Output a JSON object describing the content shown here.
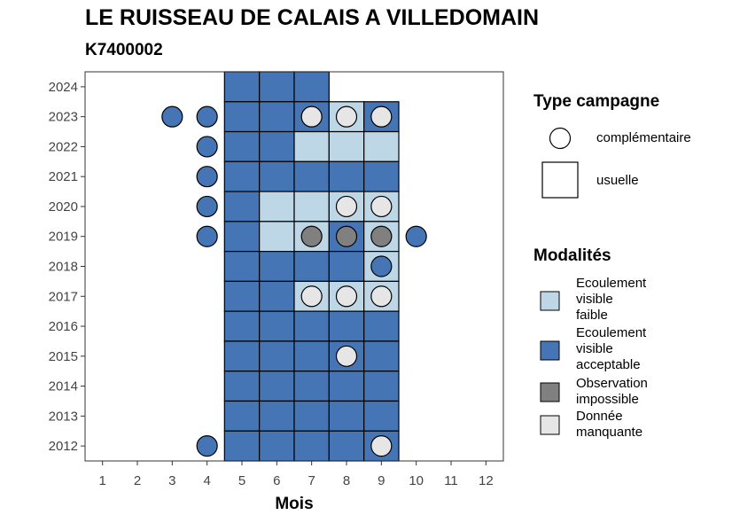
{
  "header": {
    "title": "LE RUISSEAU DE CALAIS A VILLEDOMAIN",
    "subtitle": "K7400002"
  },
  "colors": {
    "ecoulement_visible_faible": "#BDD7E7",
    "ecoulement_visible_acceptable": "#4575B4",
    "observation_impossible": "#808080",
    "donnee_manquante": "#E6E6E6"
  },
  "legend": {
    "campaign_title": "Type campagne",
    "campaign_items": [
      {
        "key": "complementaire",
        "label": "complémentaire",
        "shape": "circle"
      },
      {
        "key": "usuelle",
        "label": "usuelle",
        "shape": "square"
      }
    ],
    "modality_title": "Modalités",
    "modality_items": [
      {
        "key": "ecoulement_visible_faible",
        "lines": [
          "Ecoulement",
          "visible",
          "faible"
        ]
      },
      {
        "key": "ecoulement_visible_acceptable",
        "lines": [
          "Ecoulement",
          "visible",
          "acceptable"
        ]
      },
      {
        "key": "observation_impossible",
        "lines": [
          "Observation",
          "impossible"
        ]
      },
      {
        "key": "donnee_manquante",
        "lines": [
          "Donnée",
          "manquante"
        ]
      }
    ]
  },
  "chart_data": {
    "type": "heatmap",
    "title": "LE RUISSEAU DE CALAIS A VILLEDOMAIN",
    "subtitle": "K7400002",
    "xlabel": "Mois",
    "ylabel": "",
    "x_ticks": [
      1,
      2,
      3,
      4,
      5,
      6,
      7,
      8,
      9,
      10,
      11,
      12
    ],
    "y_ticks": [
      2012,
      2013,
      2014,
      2015,
      2016,
      2017,
      2018,
      2019,
      2020,
      2021,
      2022,
      2023,
      2024
    ],
    "xlim": [
      0.5,
      12.5
    ],
    "ylim": [
      2011.5,
      2024.5
    ],
    "grid": false,
    "legend_position": "right",
    "usuelle": [
      {
        "year": 2024,
        "month": 5,
        "modalite": "ecoulement_visible_acceptable"
      },
      {
        "year": 2024,
        "month": 6,
        "modalite": "ecoulement_visible_acceptable"
      },
      {
        "year": 2024,
        "month": 7,
        "modalite": "ecoulement_visible_acceptable"
      },
      {
        "year": 2023,
        "month": 5,
        "modalite": "ecoulement_visible_acceptable"
      },
      {
        "year": 2023,
        "month": 6,
        "modalite": "ecoulement_visible_acceptable"
      },
      {
        "year": 2023,
        "month": 7,
        "modalite": "ecoulement_visible_acceptable"
      },
      {
        "year": 2023,
        "month": 8,
        "modalite": "ecoulement_visible_faible"
      },
      {
        "year": 2023,
        "month": 9,
        "modalite": "ecoulement_visible_acceptable"
      },
      {
        "year": 2022,
        "month": 5,
        "modalite": "ecoulement_visible_acceptable"
      },
      {
        "year": 2022,
        "month": 6,
        "modalite": "ecoulement_visible_acceptable"
      },
      {
        "year": 2022,
        "month": 7,
        "modalite": "ecoulement_visible_faible"
      },
      {
        "year": 2022,
        "month": 8,
        "modalite": "ecoulement_visible_faible"
      },
      {
        "year": 2022,
        "month": 9,
        "modalite": "ecoulement_visible_faible"
      },
      {
        "year": 2021,
        "month": 5,
        "modalite": "ecoulement_visible_acceptable"
      },
      {
        "year": 2021,
        "month": 6,
        "modalite": "ecoulement_visible_acceptable"
      },
      {
        "year": 2021,
        "month": 7,
        "modalite": "ecoulement_visible_acceptable"
      },
      {
        "year": 2021,
        "month": 8,
        "modalite": "ecoulement_visible_acceptable"
      },
      {
        "year": 2021,
        "month": 9,
        "modalite": "ecoulement_visible_acceptable"
      },
      {
        "year": 2020,
        "month": 5,
        "modalite": "ecoulement_visible_acceptable"
      },
      {
        "year": 2020,
        "month": 6,
        "modalite": "ecoulement_visible_faible"
      },
      {
        "year": 2020,
        "month": 7,
        "modalite": "ecoulement_visible_faible"
      },
      {
        "year": 2020,
        "month": 8,
        "modalite": "ecoulement_visible_faible"
      },
      {
        "year": 2020,
        "month": 9,
        "modalite": "ecoulement_visible_faible"
      },
      {
        "year": 2019,
        "month": 5,
        "modalite": "ecoulement_visible_acceptable"
      },
      {
        "year": 2019,
        "month": 6,
        "modalite": "ecoulement_visible_faible"
      },
      {
        "year": 2019,
        "month": 7,
        "modalite": "ecoulement_visible_faible"
      },
      {
        "year": 2019,
        "month": 8,
        "modalite": "ecoulement_visible_acceptable"
      },
      {
        "year": 2019,
        "month": 9,
        "modalite": "ecoulement_visible_faible"
      },
      {
        "year": 2018,
        "month": 5,
        "modalite": "ecoulement_visible_acceptable"
      },
      {
        "year": 2018,
        "month": 6,
        "modalite": "ecoulement_visible_acceptable"
      },
      {
        "year": 2018,
        "month": 7,
        "modalite": "ecoulement_visible_acceptable"
      },
      {
        "year": 2018,
        "month": 8,
        "modalite": "ecoulement_visible_acceptable"
      },
      {
        "year": 2018,
        "month": 9,
        "modalite": "ecoulement_visible_faible"
      },
      {
        "year": 2017,
        "month": 5,
        "modalite": "ecoulement_visible_acceptable"
      },
      {
        "year": 2017,
        "month": 6,
        "modalite": "ecoulement_visible_acceptable"
      },
      {
        "year": 2017,
        "month": 7,
        "modalite": "ecoulement_visible_faible"
      },
      {
        "year": 2017,
        "month": 8,
        "modalite": "ecoulement_visible_faible"
      },
      {
        "year": 2017,
        "month": 9,
        "modalite": "ecoulement_visible_faible"
      },
      {
        "year": 2016,
        "month": 5,
        "modalite": "ecoulement_visible_acceptable"
      },
      {
        "year": 2016,
        "month": 6,
        "modalite": "ecoulement_visible_acceptable"
      },
      {
        "year": 2016,
        "month": 7,
        "modalite": "ecoulement_visible_acceptable"
      },
      {
        "year": 2016,
        "month": 8,
        "modalite": "ecoulement_visible_acceptable"
      },
      {
        "year": 2016,
        "month": 9,
        "modalite": "ecoulement_visible_acceptable"
      },
      {
        "year": 2015,
        "month": 5,
        "modalite": "ecoulement_visible_acceptable"
      },
      {
        "year": 2015,
        "month": 6,
        "modalite": "ecoulement_visible_acceptable"
      },
      {
        "year": 2015,
        "month": 7,
        "modalite": "ecoulement_visible_acceptable"
      },
      {
        "year": 2015,
        "month": 8,
        "modalite": "ecoulement_visible_acceptable"
      },
      {
        "year": 2015,
        "month": 9,
        "modalite": "ecoulement_visible_acceptable"
      },
      {
        "year": 2014,
        "month": 5,
        "modalite": "ecoulement_visible_acceptable"
      },
      {
        "year": 2014,
        "month": 6,
        "modalite": "ecoulement_visible_acceptable"
      },
      {
        "year": 2014,
        "month": 7,
        "modalite": "ecoulement_visible_acceptable"
      },
      {
        "year": 2014,
        "month": 8,
        "modalite": "ecoulement_visible_acceptable"
      },
      {
        "year": 2014,
        "month": 9,
        "modalite": "ecoulement_visible_acceptable"
      },
      {
        "year": 2013,
        "month": 5,
        "modalite": "ecoulement_visible_acceptable"
      },
      {
        "year": 2013,
        "month": 6,
        "modalite": "ecoulement_visible_acceptable"
      },
      {
        "year": 2013,
        "month": 7,
        "modalite": "ecoulement_visible_acceptable"
      },
      {
        "year": 2013,
        "month": 8,
        "modalite": "ecoulement_visible_acceptable"
      },
      {
        "year": 2013,
        "month": 9,
        "modalite": "ecoulement_visible_acceptable"
      },
      {
        "year": 2012,
        "month": 5,
        "modalite": "ecoulement_visible_acceptable"
      },
      {
        "year": 2012,
        "month": 6,
        "modalite": "ecoulement_visible_acceptable"
      },
      {
        "year": 2012,
        "month": 7,
        "modalite": "ecoulement_visible_acceptable"
      },
      {
        "year": 2012,
        "month": 8,
        "modalite": "ecoulement_visible_acceptable"
      },
      {
        "year": 2012,
        "month": 9,
        "modalite": "ecoulement_visible_acceptable"
      }
    ],
    "complementaire": [
      {
        "year": 2023,
        "month": 3,
        "modalite": "ecoulement_visible_acceptable"
      },
      {
        "year": 2023,
        "month": 4,
        "modalite": "ecoulement_visible_acceptable"
      },
      {
        "year": 2023,
        "month": 7,
        "modalite": "donnee_manquante"
      },
      {
        "year": 2023,
        "month": 8,
        "modalite": "donnee_manquante"
      },
      {
        "year": 2023,
        "month": 9,
        "modalite": "donnee_manquante"
      },
      {
        "year": 2022,
        "month": 4,
        "modalite": "ecoulement_visible_acceptable"
      },
      {
        "year": 2021,
        "month": 4,
        "modalite": "ecoulement_visible_acceptable"
      },
      {
        "year": 2020,
        "month": 4,
        "modalite": "ecoulement_visible_acceptable"
      },
      {
        "year": 2020,
        "month": 8,
        "modalite": "donnee_manquante"
      },
      {
        "year": 2020,
        "month": 9,
        "modalite": "donnee_manquante"
      },
      {
        "year": 2019,
        "month": 4,
        "modalite": "ecoulement_visible_acceptable"
      },
      {
        "year": 2019,
        "month": 7,
        "modalite": "observation_impossible"
      },
      {
        "year": 2019,
        "month": 8,
        "modalite": "observation_impossible"
      },
      {
        "year": 2019,
        "month": 9,
        "modalite": "observation_impossible"
      },
      {
        "year": 2019,
        "month": 10,
        "modalite": "ecoulement_visible_acceptable"
      },
      {
        "year": 2018,
        "month": 9,
        "modalite": "ecoulement_visible_acceptable"
      },
      {
        "year": 2017,
        "month": 7,
        "modalite": "donnee_manquante"
      },
      {
        "year": 2017,
        "month": 8,
        "modalite": "donnee_manquante"
      },
      {
        "year": 2017,
        "month": 9,
        "modalite": "donnee_manquante"
      },
      {
        "year": 2015,
        "month": 8,
        "modalite": "donnee_manquante"
      },
      {
        "year": 2012,
        "month": 4,
        "modalite": "ecoulement_visible_acceptable"
      },
      {
        "year": 2012,
        "month": 9,
        "modalite": "donnee_manquante"
      }
    ]
  }
}
